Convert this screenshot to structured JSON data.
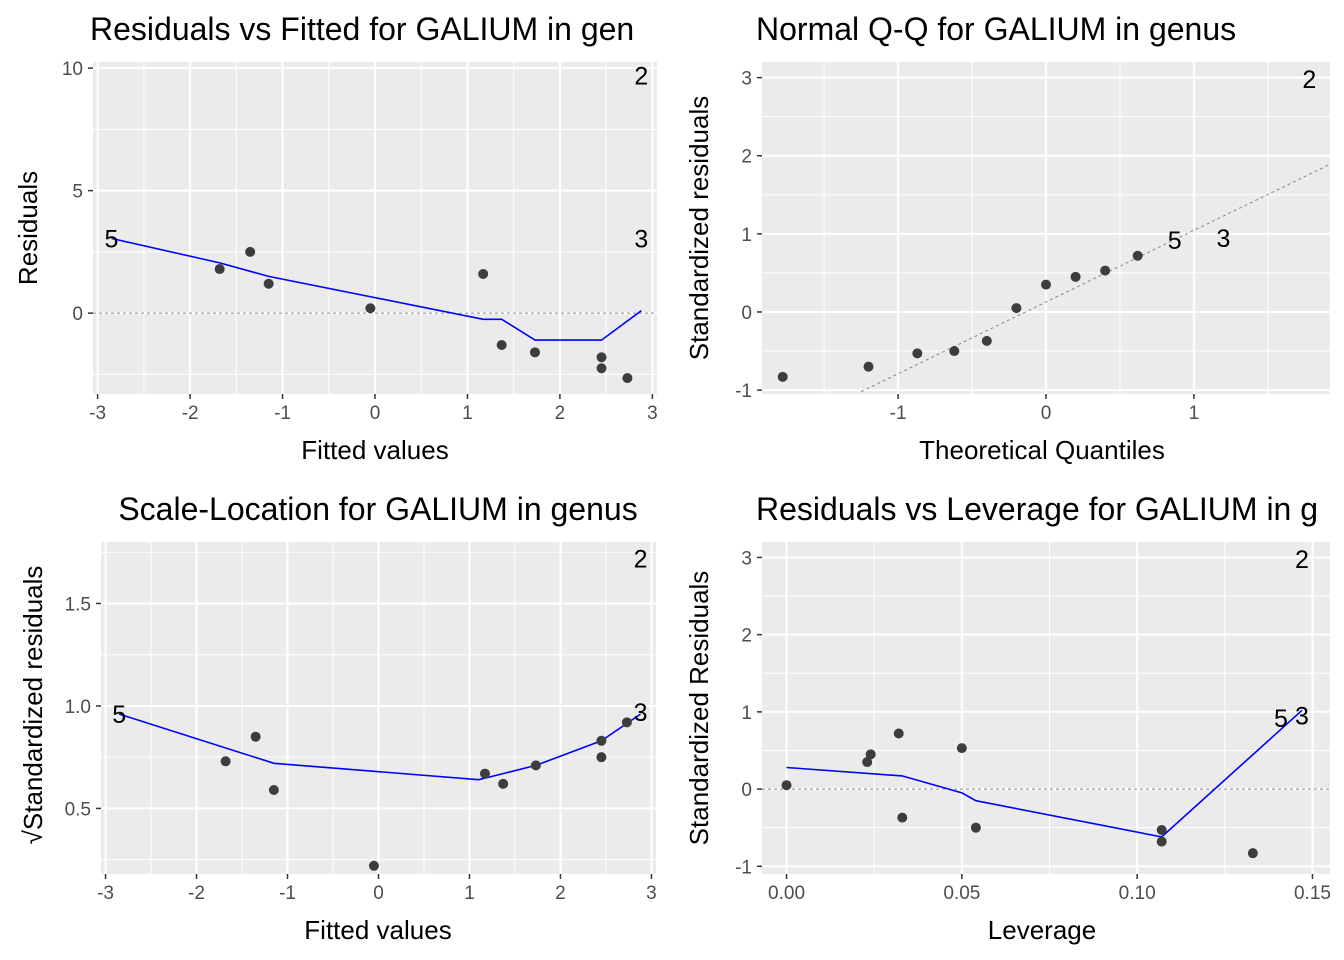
{
  "chart_data": [
    {
      "type": "scatter",
      "title": "Residuals vs Fitted for GALIUM in gen",
      "xlabel": "Fitted values",
      "ylabel": "Residuals",
      "xlim": [
        -3.05,
        3.05
      ],
      "ylim": [
        -3.3,
        10.25
      ],
      "xticks": [
        -3,
        -2,
        -1,
        0,
        1,
        2,
        3
      ],
      "yticks": [
        0,
        5,
        10
      ],
      "grid": true,
      "reference_line": {
        "y": 0,
        "style": "dashed"
      },
      "points": [
        {
          "x": -1.68,
          "y": 1.8
        },
        {
          "x": -1.35,
          "y": 2.5
        },
        {
          "x": -1.15,
          "y": 1.2
        },
        {
          "x": -0.05,
          "y": 0.2
        },
        {
          "x": 1.17,
          "y": 1.6
        },
        {
          "x": 1.37,
          "y": -1.3
        },
        {
          "x": 1.73,
          "y": -1.6
        },
        {
          "x": 2.45,
          "y": -1.8
        },
        {
          "x": 2.45,
          "y": -2.25
        },
        {
          "x": 2.73,
          "y": -2.65
        }
      ],
      "labeled_points": [
        {
          "x": -2.85,
          "y": 3.05,
          "label": "5"
        },
        {
          "x": 2.88,
          "y": 9.7,
          "label": "2"
        },
        {
          "x": 2.88,
          "y": 3.05,
          "label": "3"
        }
      ],
      "smooth": {
        "color": "#0000ff",
        "x": [
          -2.85,
          -1.68,
          -1.15,
          1.17,
          1.37,
          1.73,
          2.45,
          2.88
        ],
        "y": [
          3.05,
          2.05,
          1.5,
          -0.25,
          -0.25,
          -1.1,
          -1.1,
          0.1
        ]
      }
    },
    {
      "type": "scatter",
      "title": "Normal Q-Q for GALIUM in genus",
      "xlabel": "Theoretical Quantiles",
      "ylabel": "Standardized residuals",
      "xlim": [
        -1.92,
        1.92
      ],
      "ylim": [
        -1.05,
        3.2
      ],
      "xticks": [
        -1,
        0,
        1
      ],
      "yticks": [
        -1,
        0,
        1,
        2,
        3
      ],
      "grid": true,
      "reference_line": {
        "x": [
          -1.25,
          1.92
        ],
        "y": [
          -1.02,
          1.89
        ],
        "style": "dashed"
      },
      "points": [
        {
          "x": -1.78,
          "y": -0.83
        },
        {
          "x": -1.2,
          "y": -0.7
        },
        {
          "x": -0.87,
          "y": -0.53
        },
        {
          "x": -0.62,
          "y": -0.5
        },
        {
          "x": -0.4,
          "y": -0.37
        },
        {
          "x": -0.2,
          "y": 0.05
        },
        {
          "x": 0.0,
          "y": 0.35
        },
        {
          "x": 0.2,
          "y": 0.45
        },
        {
          "x": 0.4,
          "y": 0.53
        },
        {
          "x": 0.62,
          "y": 0.72
        }
      ],
      "labeled_points": [
        {
          "x": 0.87,
          "y": 0.92,
          "label": "5"
        },
        {
          "x": 1.2,
          "y": 0.95,
          "label": "3"
        },
        {
          "x": 1.78,
          "y": 2.98,
          "label": "2"
        }
      ]
    },
    {
      "type": "scatter",
      "title": "Scale-Location for GALIUM in genus",
      "xlabel": "Fitted values",
      "ylabel": "√Standardized residuals",
      "xlim": [
        -3.05,
        3.05
      ],
      "ylim": [
        0.18,
        1.8
      ],
      "xticks": [
        -3,
        -2,
        -1,
        0,
        1,
        2,
        3
      ],
      "yticks": [
        0.5,
        1.0,
        1.5
      ],
      "ytick_labels": [
        "0.5",
        "1.0",
        "1.5"
      ],
      "grid": true,
      "points": [
        {
          "x": -1.68,
          "y": 0.73
        },
        {
          "x": -1.35,
          "y": 0.85
        },
        {
          "x": -1.15,
          "y": 0.59
        },
        {
          "x": -0.05,
          "y": 0.22
        },
        {
          "x": 1.17,
          "y": 0.67
        },
        {
          "x": 1.37,
          "y": 0.62
        },
        {
          "x": 1.73,
          "y": 0.71
        },
        {
          "x": 2.45,
          "y": 0.83
        },
        {
          "x": 2.45,
          "y": 0.75
        },
        {
          "x": 2.73,
          "y": 0.92
        }
      ],
      "labeled_points": [
        {
          "x": -2.85,
          "y": 0.96,
          "label": "5"
        },
        {
          "x": 2.88,
          "y": 1.72,
          "label": "2"
        },
        {
          "x": 2.88,
          "y": 0.97,
          "label": "3"
        }
      ],
      "smooth": {
        "color": "#0000ff",
        "x": [
          -2.85,
          -1.15,
          1.1,
          1.37,
          1.73,
          2.45,
          2.88
        ],
        "y": [
          0.96,
          0.72,
          0.64,
          0.67,
          0.71,
          0.83,
          0.96
        ]
      }
    },
    {
      "type": "scatter",
      "title": "Residuals vs Leverage for GALIUM in g",
      "xlabel": "Leverage",
      "ylabel": "Standardized Residuals",
      "xlim": [
        -0.007,
        0.155
      ],
      "ylim": [
        -1.1,
        3.2
      ],
      "xticks": [
        0.0,
        0.05,
        0.1,
        0.15
      ],
      "xtick_labels": [
        "0.00",
        "0.05",
        "0.10",
        "0.15"
      ],
      "yticks": [
        -1,
        0,
        1,
        2,
        3
      ],
      "grid": true,
      "reference_line": {
        "y": 0,
        "style": "dashed"
      },
      "points": [
        {
          "x": 0.0,
          "y": 0.05
        },
        {
          "x": 0.023,
          "y": 0.35
        },
        {
          "x": 0.024,
          "y": 0.45
        },
        {
          "x": 0.032,
          "y": 0.72
        },
        {
          "x": 0.033,
          "y": -0.37
        },
        {
          "x": 0.05,
          "y": 0.53
        },
        {
          "x": 0.054,
          "y": -0.5
        },
        {
          "x": 0.107,
          "y": -0.53
        },
        {
          "x": 0.107,
          "y": -0.68
        },
        {
          "x": 0.133,
          "y": -0.83
        }
      ],
      "labeled_points": [
        {
          "x": 0.141,
          "y": 0.92,
          "label": "5"
        },
        {
          "x": 0.147,
          "y": 0.95,
          "label": "3"
        },
        {
          "x": 0.147,
          "y": 2.98,
          "label": "2"
        }
      ],
      "smooth": {
        "color": "#0000ff",
        "x": [
          0.0,
          0.033,
          0.05,
          0.054,
          0.107,
          0.147
        ],
        "y": [
          0.28,
          0.17,
          -0.05,
          -0.15,
          -0.62,
          1.02
        ]
      }
    }
  ]
}
